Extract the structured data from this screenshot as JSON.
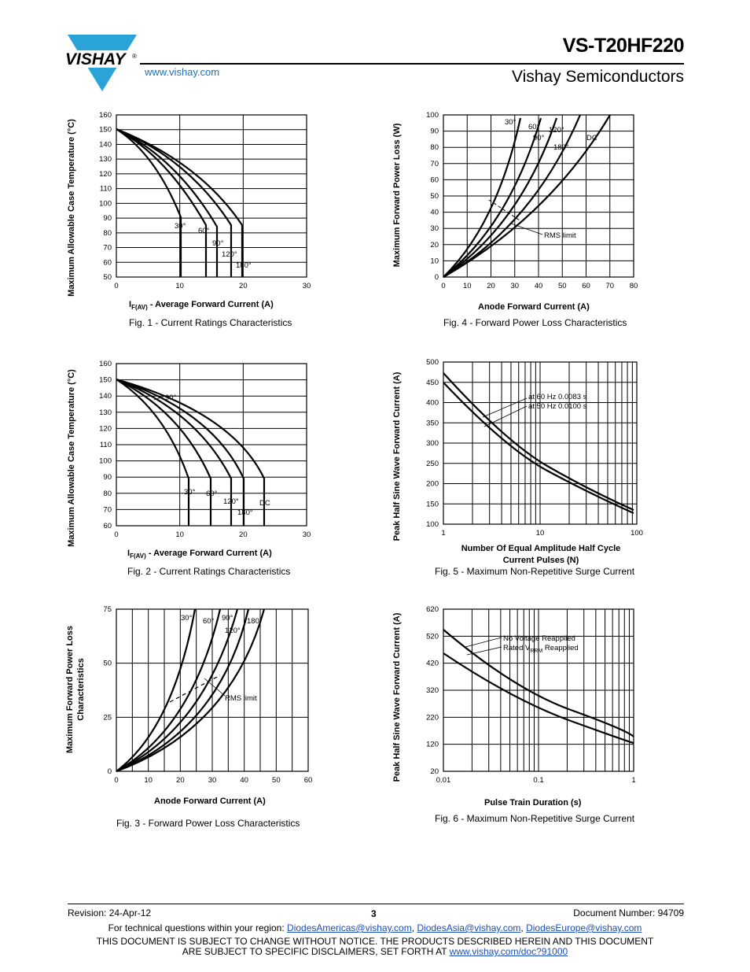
{
  "header": {
    "logo_text": "VISHAY",
    "logo_reg": "®",
    "title": "VS-T20HF220",
    "subtitle": "Vishay Semiconductors",
    "url": "www.vishay.com",
    "logo_color": "#2aa3d8"
  },
  "figures": [
    {
      "id": "fig1",
      "caption": "Fig. 1 - Current Ratings Characteristics",
      "ylabel": "Maximum Allowable Case Temperature (°C)",
      "xlabel_main": "I",
      "xlabel_sub": "F(AV)",
      "xlabel_rest": " - Average Forward Current (A)",
      "xticks": [
        "0",
        "10",
        "20",
        "30"
      ],
      "yticks": [
        "160",
        "150",
        "140",
        "130",
        "120",
        "110",
        "100",
        "90",
        "80",
        "70",
        "60",
        "50"
      ],
      "curve_labels": [
        "30°",
        "60°",
        "90°",
        "120°",
        "180°"
      ]
    },
    {
      "id": "fig2",
      "caption": "Fig. 2 - Current Ratings Characteristics",
      "ylabel": "Maximum Allowable Case Temperature (°C)",
      "xlabel_main": "I",
      "xlabel_sub": "F(AV)",
      "xlabel_rest": " - Average Forward Current (A)",
      "xticks": [
        "0",
        "10",
        "20",
        "30"
      ],
      "yticks": [
        "160",
        "150",
        "140",
        "130",
        "120",
        "110",
        "100",
        "90",
        "80",
        "70",
        "60"
      ],
      "curve_labels": [
        "90°",
        "30°",
        "60°",
        "120°",
        "180°",
        "DC"
      ]
    },
    {
      "id": "fig3",
      "caption": "Fig. 3 - Forward Power Loss Characteristics",
      "ylabel_line1": "Maximum Forward Power Loss",
      "ylabel_line2": "Characteristics",
      "xlabel": "Anode Forward Current (A)",
      "xticks": [
        "0",
        "10",
        "20",
        "30",
        "40",
        "50",
        "60"
      ],
      "yticks": [
        "75",
        "50",
        "25",
        "0"
      ],
      "curve_labels": [
        "30°",
        "60°",
        "90°",
        "120°",
        "180°"
      ],
      "rms_label": "RMS limit"
    },
    {
      "id": "fig4",
      "caption": "Fig. 4 - Forward Power Loss Characteristics",
      "ylabel": "Maximum Forward Power Loss (W)",
      "xlabel": "Anode Forward Current (A)",
      "xticks": [
        "0",
        "10",
        "20",
        "30",
        "40",
        "50",
        "60",
        "70",
        "80"
      ],
      "yticks": [
        "100",
        "90",
        "80",
        "70",
        "60",
        "50",
        "40",
        "30",
        "20",
        "10",
        "0"
      ],
      "curve_labels": [
        "30°",
        "60°",
        "120°",
        "90°",
        "180°",
        "DC"
      ],
      "rms_label": "RMS limit"
    },
    {
      "id": "fig5",
      "caption": "Fig. 5 - Maximum Non-Repetitive Surge Current",
      "ylabel": "Peak Half Sine Wave Forward Current (A)",
      "xlabel_line1": "Number Of Equal Amplitude Half Cycle",
      "xlabel_line2": "Current Pulses (N)",
      "xticks": [
        "1",
        "10",
        "100"
      ],
      "yticks": [
        "500",
        "450",
        "400",
        "350",
        "300",
        "250",
        "200",
        "150",
        "100"
      ],
      "note1": "at 60 Hz 0.0083 s",
      "note2": "at 50 Hz 0.0100 s"
    },
    {
      "id": "fig6",
      "caption": "Fig. 6 - Maximum Non-Repetitive Surge Current",
      "ylabel": "Peak Half Sine Wave Forward Current (A)",
      "xlabel": "Pulse Train Duration (s)",
      "xticks": [
        "0.01",
        "0.1",
        "1"
      ],
      "yticks": [
        "620",
        "520",
        "420",
        "320",
        "220",
        "120",
        "20"
      ],
      "note1": "No Voltage Reapplied",
      "note2_a": "Rated V",
      "note2_sub": "RRM",
      "note2_b": " Reapplied"
    }
  ],
  "footer": {
    "revision": "Revision: 24-Apr-12",
    "page": "3",
    "doc_number": "Document Number: 94709",
    "questions": "For technical questions within your region: ",
    "email1": "DiodesAmericas@vishay.com",
    "email2": "DiodesAsia@vishay.com",
    "email3": "DiodesEurope@vishay.com",
    "sep": ", ",
    "notice1": "THIS DOCUMENT IS SUBJECT TO CHANGE WITHOUT NOTICE. THE PRODUCTS DESCRIBED HEREIN AND THIS DOCUMENT",
    "notice2": "ARE SUBJECT TO SPECIFIC DISCLAIMERS, SET FORTH AT ",
    "notice_link": "www.vishay.com/doc?91000"
  }
}
